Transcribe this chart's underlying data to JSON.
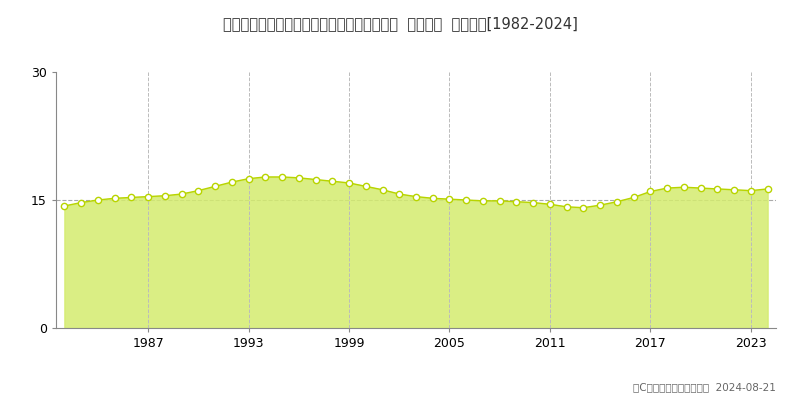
{
  "title": "福島県いわき市好間町下好間字手倉５２番３  地価公示  地価推移[1982-2024]",
  "years": [
    1982,
    1983,
    1984,
    1985,
    1986,
    1987,
    1988,
    1989,
    1990,
    1991,
    1992,
    1993,
    1994,
    1995,
    1996,
    1997,
    1998,
    1999,
    2000,
    2001,
    2002,
    2003,
    2004,
    2005,
    2006,
    2007,
    2008,
    2009,
    2010,
    2011,
    2012,
    2013,
    2014,
    2015,
    2016,
    2017,
    2018,
    2019,
    2020,
    2021,
    2022,
    2023,
    2024
  ],
  "values": [
    14.3,
    14.7,
    15.0,
    15.2,
    15.3,
    15.4,
    15.5,
    15.7,
    16.1,
    16.6,
    17.1,
    17.5,
    17.7,
    17.7,
    17.6,
    17.4,
    17.2,
    17.0,
    16.6,
    16.2,
    15.7,
    15.4,
    15.2,
    15.1,
    15.0,
    14.9,
    14.9,
    14.8,
    14.7,
    14.5,
    14.2,
    14.1,
    14.4,
    14.8,
    15.3,
    16.0,
    16.4,
    16.5,
    16.4,
    16.3,
    16.2,
    16.1,
    16.3
  ],
  "ylim": [
    0,
    30
  ],
  "yticks": [
    0,
    15,
    30
  ],
  "xticks": [
    1987,
    1993,
    1999,
    2005,
    2011,
    2017,
    2023
  ],
  "line_color": "#b8d400",
  "fill_color": "#d4ec6e",
  "fill_alpha": 0.85,
  "marker_facecolor": "#ffffff",
  "marker_edgecolor": "#b8d400",
  "bg_color": "#ffffff",
  "plot_bg_color": "#ffffff",
  "grid_color": "#bbbbbb",
  "legend_square_color": "#c8e040",
  "copyright_text": "（C）土地価格ドットコム  2024-08-21",
  "hline_value": 15,
  "hline_color": "#aaaaaa"
}
